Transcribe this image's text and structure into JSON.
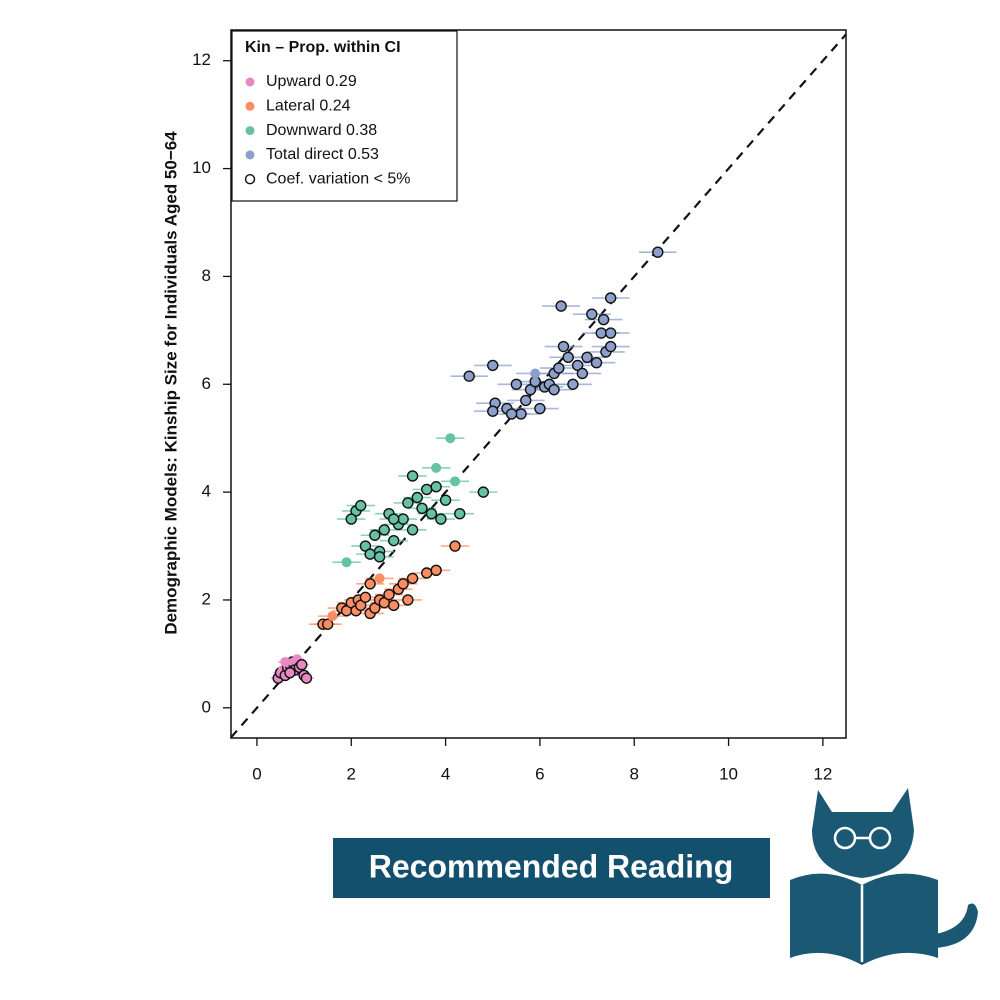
{
  "chart_data": {
    "type": "scatter",
    "ylabel": "Demographic Models: Kinship Size for Individuals Aged 50−64",
    "legend_title": "Kin – Prop. within CI",
    "outline_legend": "Coef. variation < 5%",
    "legend_position": "top-left",
    "identity_line": true,
    "xlim": [
      -0.55,
      12.49
    ],
    "ylim": [
      -0.56,
      12.57
    ],
    "xticks": [
      0,
      2,
      4,
      6,
      8,
      10,
      12
    ],
    "yticks": [
      0,
      2,
      4,
      6,
      8,
      10,
      12
    ],
    "series": [
      {
        "name": "Upward 0.29",
        "color": "#e78ac3",
        "xerr": 0.15,
        "x": [
          0.45,
          0.5,
          0.55,
          0.6,
          0.65,
          0.7,
          0.75,
          0.8,
          0.85,
          0.9,
          0.95,
          1.0,
          1.05,
          0.6,
          0.7
        ],
        "values": [
          0.55,
          0.65,
          0.7,
          0.6,
          0.75,
          0.8,
          0.85,
          0.7,
          0.9,
          0.75,
          0.8,
          0.6,
          0.55,
          0.85,
          0.65
        ],
        "outlined": [
          true,
          true,
          false,
          true,
          true,
          true,
          true,
          true,
          false,
          true,
          true,
          true,
          true,
          false,
          true
        ]
      },
      {
        "name": "Lateral 0.24",
        "color": "#fc8d62",
        "xerr": 0.3,
        "x": [
          1.4,
          1.5,
          1.8,
          1.9,
          2.0,
          2.1,
          2.15,
          2.2,
          2.3,
          2.4,
          2.5,
          2.6,
          2.7,
          2.8,
          2.9,
          3.0,
          3.1,
          3.2,
          3.3,
          3.6,
          3.8,
          4.2,
          2.6,
          2.4,
          1.6
        ],
        "values": [
          1.55,
          1.55,
          1.85,
          1.8,
          1.95,
          1.8,
          2.0,
          1.9,
          2.05,
          1.75,
          1.85,
          2.0,
          1.95,
          2.1,
          1.9,
          2.2,
          2.3,
          2.0,
          2.4,
          2.5,
          2.55,
          3.0,
          2.4,
          2.3,
          1.7
        ],
        "outlined": [
          true,
          true,
          true,
          true,
          true,
          true,
          true,
          true,
          true,
          true,
          true,
          true,
          true,
          true,
          true,
          true,
          true,
          true,
          true,
          true,
          true,
          true,
          false,
          true,
          false
        ]
      },
      {
        "name": "Downward 0.38",
        "color": "#66c2a5",
        "xerr": 0.3,
        "x": [
          2.1,
          2.2,
          2.0,
          2.3,
          2.4,
          2.5,
          2.6,
          2.7,
          2.8,
          2.9,
          3.0,
          3.1,
          3.2,
          3.3,
          3.4,
          3.5,
          3.6,
          3.7,
          3.8,
          3.9,
          4.0,
          4.3,
          4.8,
          4.1,
          3.8,
          4.2,
          2.6,
          2.9,
          3.3,
          1.9
        ],
        "values": [
          3.65,
          3.75,
          3.5,
          3.0,
          2.85,
          3.2,
          2.9,
          3.3,
          3.6,
          3.1,
          3.4,
          3.5,
          3.8,
          3.3,
          3.9,
          3.7,
          4.05,
          3.6,
          4.1,
          3.5,
          3.85,
          3.6,
          4.0,
          5.0,
          4.45,
          4.2,
          2.8,
          3.5,
          4.3,
          2.7
        ],
        "outlined": [
          true,
          true,
          true,
          true,
          true,
          true,
          true,
          true,
          true,
          true,
          true,
          true,
          true,
          true,
          true,
          true,
          true,
          true,
          true,
          true,
          true,
          true,
          true,
          false,
          false,
          false,
          true,
          true,
          true,
          false
        ]
      },
      {
        "name": "Total direct 0.53",
        "color": "#8da0cb",
        "xerr": 0.4,
        "x": [
          4.5,
          5.0,
          5.05,
          5.0,
          5.3,
          5.5,
          5.6,
          5.7,
          5.8,
          5.9,
          6.0,
          6.1,
          6.2,
          6.3,
          6.4,
          6.45,
          6.5,
          6.6,
          6.7,
          6.8,
          6.9,
          7.0,
          7.1,
          7.2,
          7.3,
          7.35,
          7.4,
          7.5,
          7.5,
          7.5,
          8.5,
          5.9,
          6.3,
          5.4
        ],
        "values": [
          6.15,
          6.35,
          5.65,
          5.5,
          5.55,
          6.0,
          5.45,
          5.7,
          5.9,
          6.05,
          5.55,
          5.95,
          6.0,
          6.2,
          6.3,
          7.45,
          6.7,
          6.5,
          6.0,
          6.35,
          6.2,
          6.5,
          7.3,
          6.4,
          6.95,
          7.2,
          6.6,
          7.6,
          6.95,
          6.7,
          8.45,
          6.2,
          5.9,
          5.45
        ],
        "outlined": [
          true,
          true,
          true,
          true,
          true,
          true,
          true,
          true,
          true,
          true,
          true,
          true,
          true,
          true,
          true,
          true,
          true,
          true,
          true,
          true,
          true,
          true,
          true,
          true,
          true,
          true,
          true,
          true,
          true,
          true,
          true,
          false,
          true,
          true
        ]
      }
    ]
  },
  "banner": "Recommended Reading"
}
